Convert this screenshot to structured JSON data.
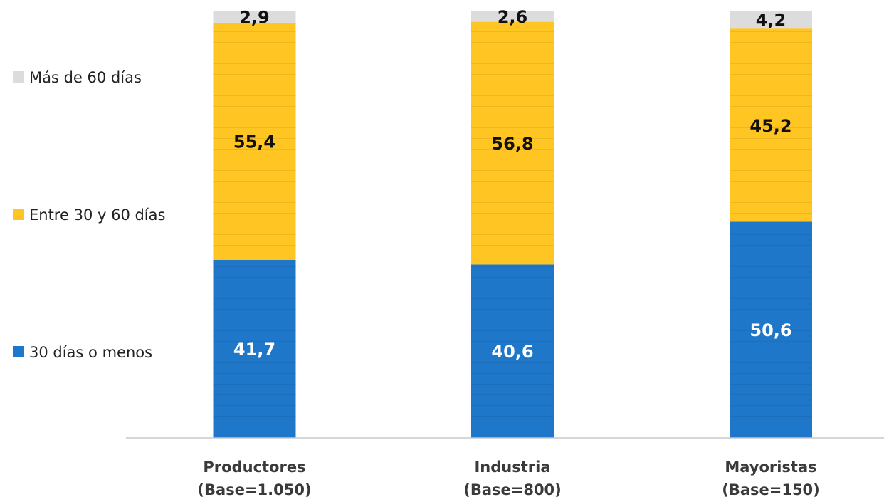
{
  "chart_data": {
    "type": "bar",
    "stacked": true,
    "orientation": "vertical",
    "unit": "percent",
    "title": "",
    "xlabel": "",
    "ylabel": "",
    "ylim": [
      0,
      100
    ],
    "grid": false,
    "legend_position": "left",
    "categories": [
      {
        "name": "Productores",
        "base": "(Base=1.050)"
      },
      {
        "name": "Industria",
        "base": "(Base=800)"
      },
      {
        "name": "Mayoristas",
        "base": "(Base=150)"
      }
    ],
    "series": [
      {
        "name": "30 días o menos",
        "color": "#1F77C9",
        "label_color": "#ffffff",
        "values": [
          41.7,
          40.6,
          50.6
        ],
        "labels": [
          "41,7",
          "40,6",
          "50,6"
        ]
      },
      {
        "name": "Entre 30 y 60 días",
        "color": "#FFC522",
        "label_color": "#111111",
        "values": [
          55.4,
          56.8,
          45.2
        ],
        "labels": [
          "55,4",
          "56,8",
          "45,2"
        ]
      },
      {
        "name": "Más de 60 días",
        "color": "#DCDCDC",
        "label_color": "#111111",
        "values": [
          2.9,
          2.6,
          4.2
        ],
        "labels": [
          "2,9",
          "2,6",
          "4,2"
        ]
      }
    ],
    "legend_order": [
      "Más de 60 días",
      "Entre 30 y 60 días",
      "30 días o menos"
    ]
  }
}
